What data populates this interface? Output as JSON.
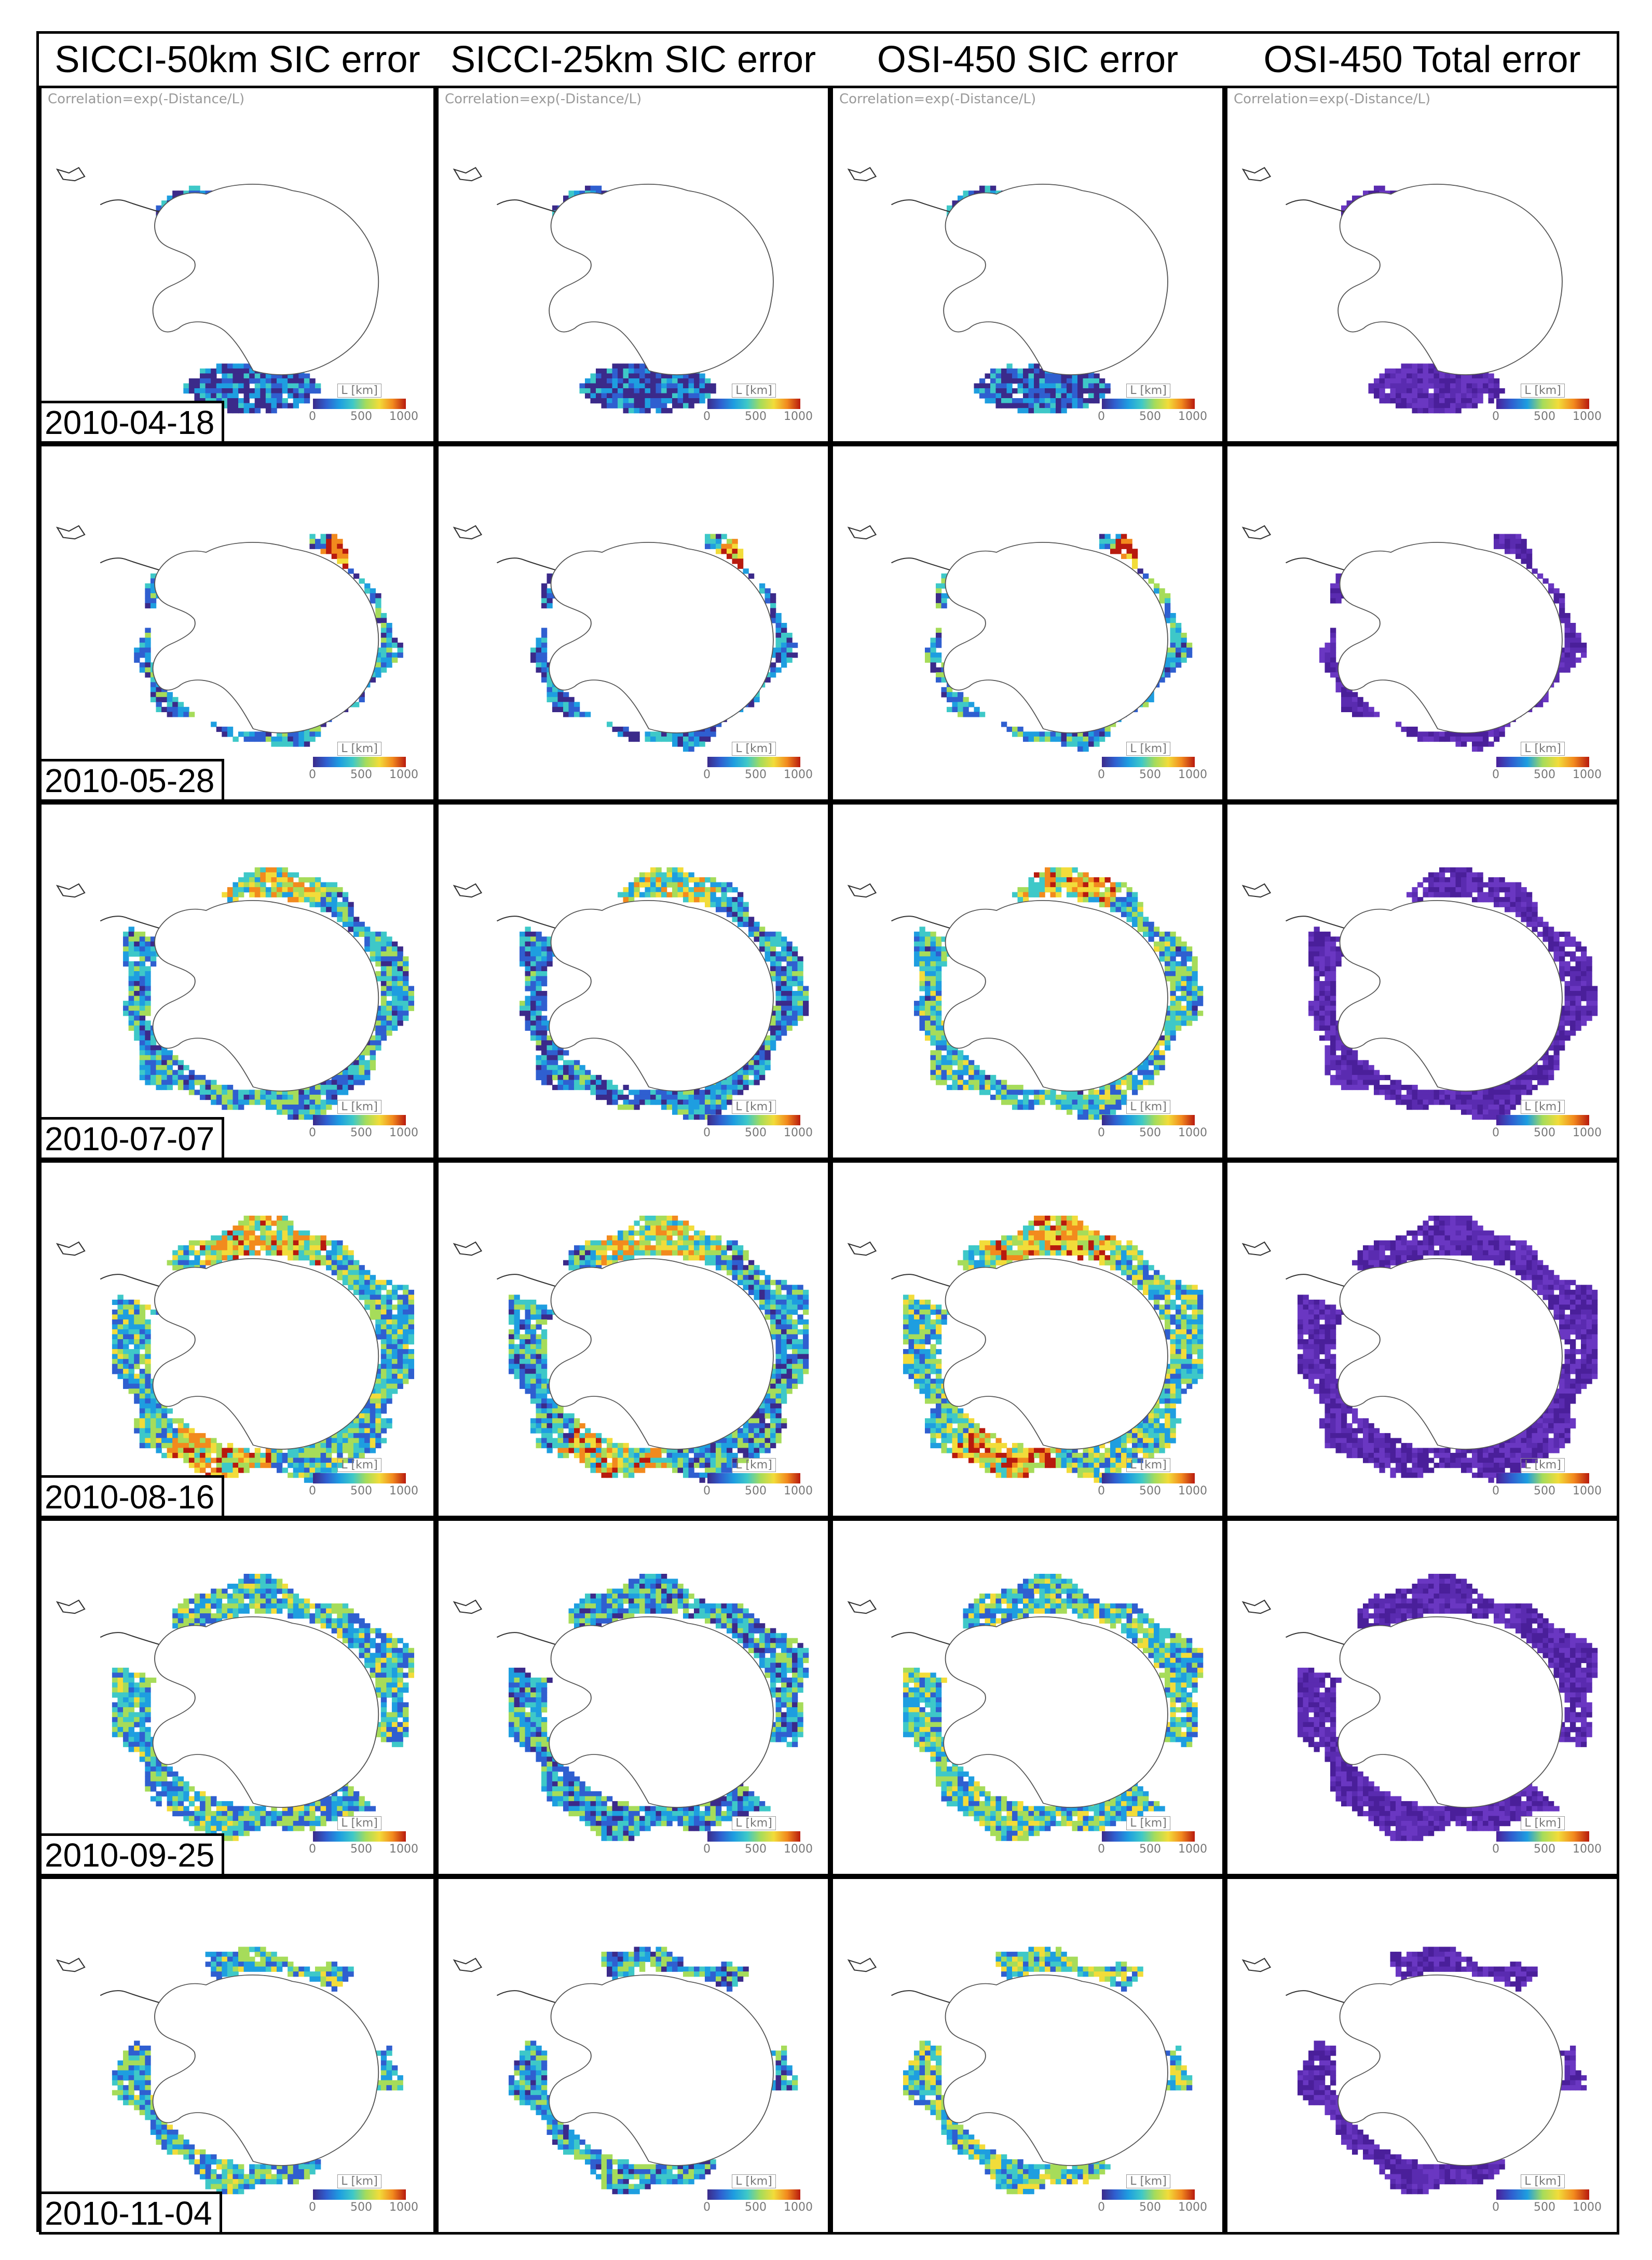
{
  "columns": [
    {
      "title": "SICCI-50km SIC error",
      "scheme": "jet"
    },
    {
      "title": "SICCI-25km SIC error",
      "scheme": "jet"
    },
    {
      "title": "OSI-450 SIC error",
      "scheme": "jet"
    },
    {
      "title": "OSI-450 Total error",
      "scheme": "purple"
    }
  ],
  "rows": [
    {
      "date": "2010-04-18"
    },
    {
      "date": "2010-05-28"
    },
    {
      "date": "2010-07-07"
    },
    {
      "date": "2010-08-16"
    },
    {
      "date": "2010-09-25"
    },
    {
      "date": "2010-11-04"
    }
  ],
  "correlation_label": "Correlation=exp(-Distance/L)",
  "colorbar": {
    "label": "L [km]",
    "ticks": [
      "0",
      "500",
      "1000"
    ],
    "min": 0,
    "max": 1000
  },
  "colors": {
    "jet": [
      "#3b2a8a",
      "#2f5fd0",
      "#1e9ee0",
      "#3ec8c8",
      "#a6dc5a",
      "#f2dc3a",
      "#f28a1e",
      "#b81a0e"
    ],
    "purple": [
      "#4a1f9a",
      "#5a2bb0",
      "#6a37c2"
    ],
    "land_outline": "#555555"
  }
}
